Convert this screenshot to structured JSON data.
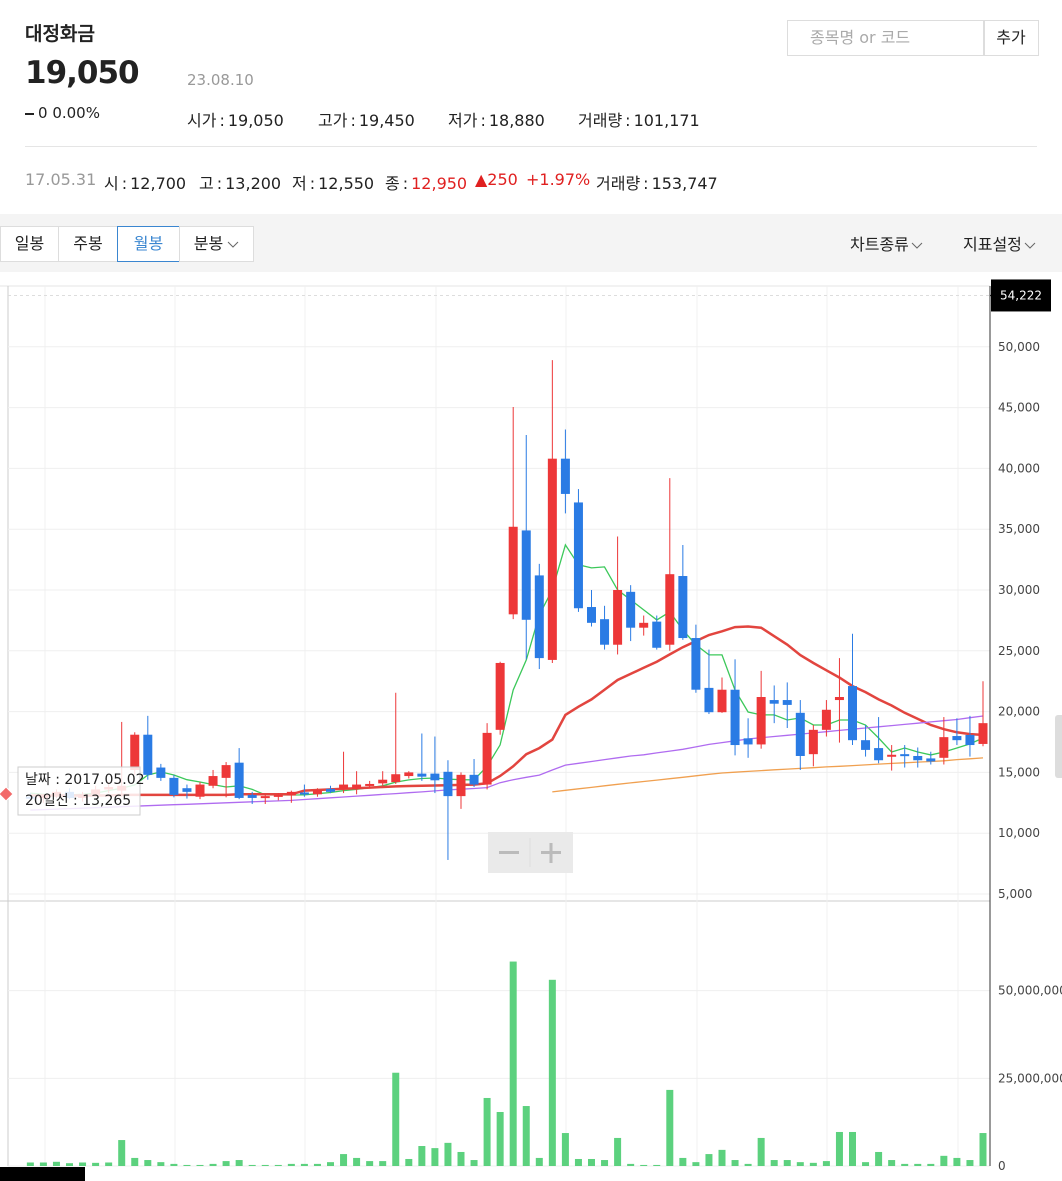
{
  "header": {
    "title": "대정화금",
    "price": "19,050",
    "change": "0",
    "change_rate": "0.00%",
    "date": "23.08.10",
    "separator": ":",
    "stats": [
      {
        "label": "시가",
        "value": "19,050"
      },
      {
        "label": "고가",
        "value": "19,450"
      },
      {
        "label": "저가",
        "value": "18,880"
      },
      {
        "label": "거래량",
        "value": "101,171"
      }
    ]
  },
  "search": {
    "placeholder": "종목명 or 코드",
    "button": "추가"
  },
  "hover_row": {
    "date": "17.05.31",
    "items": [
      {
        "label": "시",
        "value": "12,700"
      },
      {
        "label": "고",
        "value": "13,200"
      },
      {
        "label": "저",
        "value": "12,550"
      },
      {
        "label": "종",
        "value": "12,950"
      }
    ],
    "change": "▲250",
    "change_rate": "+1.97%",
    "volume": {
      "label": "거래량",
      "value": "153,747"
    }
  },
  "tabs": [
    "일봉",
    "주봉",
    "월봉",
    "분봉"
  ],
  "selected_tab": 2,
  "toolbar_right": [
    "차트종류",
    "지표설정"
  ],
  "tooltip": {
    "lines": [
      "날짜 : 2017.05.02",
      "20일선 : 13,265"
    ]
  },
  "chart_data": [
    {
      "type": "candlestick",
      "up_color": "#ed3738",
      "down_color": "#2a7be4",
      "ylim": [
        5000,
        55000
      ],
      "yticks": [
        {
          "value": 5000,
          "label": "5,000"
        },
        {
          "value": 10000,
          "label": "10,000"
        },
        {
          "value": 15000,
          "label": "15,000"
        },
        {
          "value": 20000,
          "label": "20,000"
        },
        {
          "value": 25000,
          "label": "25,000"
        },
        {
          "value": 30000,
          "label": "30,000"
        },
        {
          "value": 35000,
          "label": "35,000"
        },
        {
          "value": 40000,
          "label": "40,000"
        },
        {
          "value": 45000,
          "label": "45,000"
        },
        {
          "value": 50000,
          "label": "50,000"
        }
      ],
      "grid": true,
      "marker": {
        "value": 54222,
        "label": "54,222"
      },
      "open": [
        13000,
        12900,
        13100,
        13400,
        12900,
        13200,
        13600,
        13500,
        15200,
        18100,
        15400,
        14550,
        13700,
        13000,
        13900,
        14550,
        15800,
        13150,
        13000,
        13100,
        13100,
        13350,
        13200,
        13650,
        13650,
        13650,
        14000,
        14100,
        14200,
        14700,
        14900,
        14900,
        15050,
        13050,
        14800,
        14000,
        18500,
        28000,
        34900,
        31200,
        24250,
        40800,
        37200,
        28600,
        27600,
        25500,
        29850,
        26900,
        27400,
        25500,
        31150,
        26050,
        21950,
        19950,
        21800,
        17800,
        17300,
        20950,
        20950,
        19900,
        16500,
        18500,
        20950,
        22100,
        17650,
        17000,
        16300,
        16500,
        16350,
        16150,
        16200,
        17990,
        18080,
        17340
      ],
      "high": [
        13300,
        13200,
        13600,
        13700,
        13400,
        13900,
        14200,
        19150,
        18300,
        19650,
        15700,
        14800,
        14000,
        14200,
        15200,
        15850,
        17000,
        13400,
        13200,
        13300,
        13500,
        14000,
        13700,
        13900,
        16700,
        15100,
        14300,
        15100,
        21550,
        15100,
        18200,
        17950,
        16000,
        15000,
        16100,
        19050,
        24100,
        45050,
        42750,
        32150,
        48900,
        43200,
        38300,
        30000,
        28700,
        34400,
        30400,
        27900,
        27900,
        39200,
        33700,
        27150,
        25100,
        22800,
        24300,
        19450,
        23350,
        22150,
        22400,
        20950,
        18900,
        20950,
        24400,
        26400,
        18900,
        19550,
        17250,
        17250,
        17050,
        16700,
        19550,
        19450,
        19650,
        22500
      ],
      "low": [
        12700,
        12500,
        12900,
        12800,
        12600,
        13000,
        13300,
        13000,
        14800,
        14400,
        14300,
        12950,
        12850,
        12800,
        13700,
        12950,
        12800,
        12400,
        12400,
        12700,
        12500,
        13000,
        13000,
        13300,
        13300,
        13200,
        13700,
        13900,
        14050,
        14500,
        14300,
        13300,
        7800,
        12000,
        13800,
        13600,
        18100,
        27600,
        24300,
        23500,
        24000,
        36300,
        28200,
        27000,
        25100,
        24700,
        25800,
        26250,
        25100,
        25000,
        25900,
        21550,
        19800,
        19900,
        16400,
        16200,
        16950,
        19050,
        18650,
        15200,
        15500,
        17950,
        17450,
        17250,
        16300,
        15750,
        15150,
        15400,
        15400,
        15650,
        15650,
        17250,
        16300,
        17150
      ],
      "close": [
        12900,
        13100,
        13400,
        12900,
        13200,
        13600,
        13800,
        13900,
        18100,
        14800,
        14550,
        13150,
        13400,
        14000,
        14700,
        15600,
        12900,
        12900,
        13050,
        13150,
        13400,
        13250,
        13550,
        13400,
        14000,
        14000,
        14050,
        14400,
        14850,
        15000,
        14650,
        14350,
        13050,
        14800,
        14000,
        18250,
        24000,
        35200,
        27550,
        24400,
        40800,
        37900,
        28500,
        27300,
        25500,
        30000,
        26900,
        27300,
        25250,
        31300,
        26050,
        21800,
        19950,
        21800,
        17250,
        17300,
        21200,
        20650,
        20550,
        16350,
        18500,
        20150,
        21200,
        17650,
        16850,
        16000,
        16450,
        16350,
        16000,
        15900,
        17900,
        17650,
        17250,
        19050
      ],
      "lines": [
        {
          "color": "#3cc85a",
          "values": [
            13300,
            13200,
            13100,
            13150,
            13200,
            13300,
            13500,
            13700,
            13970,
            14790,
            15040,
            14790,
            14400,
            14210,
            14000,
            13800,
            13900,
            13600,
            13150,
            13140,
            13140,
            13150,
            13250,
            13350,
            13500,
            13600,
            13750,
            13900,
            14200,
            14380,
            14500,
            14540,
            14450,
            14400,
            14380,
            15500,
            17260,
            21780,
            24250,
            27950,
            30010,
            33710,
            32070,
            31820,
            31900,
            30010,
            29190,
            28360,
            27540,
            28200,
            26720,
            25490,
            24660,
            24660,
            21780,
            19970,
            19730,
            19730,
            19310,
            19480,
            18900,
            18900,
            19310,
            19310,
            18900,
            17830,
            16680,
            17010,
            16680,
            16440,
            16680,
            17010,
            17340,
            17830
          ]
        },
        {
          "color": "#e2453f",
          "values": [
            13100,
            13100,
            13100,
            13100,
            13100,
            13100,
            13100,
            13150,
            13150,
            13150,
            13150,
            13150,
            13150,
            13150,
            13150,
            13150,
            13200,
            13200,
            13200,
            13200,
            13200,
            13500,
            13550,
            13600,
            13650,
            13700,
            13750,
            13800,
            13850,
            13880,
            13900,
            13920,
            13950,
            13970,
            14000,
            14100,
            14700,
            15500,
            16500,
            17000,
            17700,
            19730,
            20400,
            21000,
            21800,
            22600,
            23100,
            23600,
            24100,
            24700,
            25300,
            25800,
            26300,
            26600,
            26950,
            27000,
            26900,
            26200,
            25500,
            24650,
            24000,
            23400,
            22800,
            22100,
            21600,
            21000,
            20500,
            19900,
            19400,
            18900,
            18550,
            18300,
            18150,
            18080
          ]
        },
        {
          "color": "#b06cf0",
          "values": [
            11900,
            11940,
            11980,
            12020,
            12060,
            12100,
            12140,
            12180,
            12220,
            12260,
            12300,
            12340,
            12380,
            12420,
            12460,
            12500,
            12540,
            12580,
            12620,
            12660,
            12700,
            12770,
            12840,
            12910,
            12980,
            13050,
            13120,
            13190,
            13260,
            13330,
            13400,
            13480,
            13560,
            13620,
            13680,
            13750,
            14150,
            14400,
            14600,
            14780,
            15200,
            15600,
            15750,
            15900,
            16050,
            16200,
            16350,
            16450,
            16600,
            16750,
            16900,
            17100,
            17300,
            17450,
            17600,
            17750,
            17850,
            17950,
            18050,
            18150,
            18250,
            18350,
            18450,
            18550,
            18650,
            18750,
            18850,
            18950,
            19050,
            19150,
            19250,
            19350,
            19500,
            19640
          ]
        },
        {
          "color": "#f0a050",
          "values": [
            null,
            null,
            null,
            null,
            null,
            null,
            null,
            null,
            null,
            null,
            null,
            null,
            null,
            null,
            null,
            null,
            null,
            null,
            null,
            null,
            null,
            null,
            null,
            null,
            null,
            null,
            null,
            null,
            null,
            null,
            null,
            null,
            null,
            null,
            null,
            null,
            null,
            null,
            null,
            null,
            13400,
            13530,
            13650,
            13770,
            13900,
            14020,
            14140,
            14250,
            14370,
            14480,
            14600,
            14720,
            14840,
            14950,
            15020,
            15080,
            15150,
            15210,
            15270,
            15330,
            15390,
            15450,
            15500,
            15560,
            15620,
            15680,
            15740,
            15790,
            15850,
            15900,
            15950,
            16050,
            16120,
            16190
          ]
        }
      ]
    },
    {
      "type": "bar",
      "color": "#5cd17e",
      "ylim": [
        0,
        75000000
      ],
      "yticks": [
        0,
        {
          "value": 25000000,
          "label": "25,000,000"
        },
        {
          "value": 50000000,
          "label": "50,000,000"
        }
      ],
      "grid": true,
      "values": [
        1000000,
        1000000,
        1200000,
        800000,
        1000000,
        900000,
        1000000,
        7400000,
        2300000,
        1700000,
        1100000,
        600000,
        300000,
        300000,
        600000,
        1400000,
        1700000,
        300000,
        300000,
        300000,
        600000,
        600000,
        600000,
        1100000,
        3400000,
        2300000,
        1400000,
        1400000,
        26600000,
        2000000,
        5700000,
        5100000,
        6600000,
        4000000,
        1700000,
        19400000,
        15400000,
        58300000,
        17100000,
        2300000,
        53100000,
        9400000,
        2000000,
        2000000,
        1700000,
        8000000,
        600000,
        300000,
        300000,
        21700000,
        2300000,
        1100000,
        3400000,
        4600000,
        1700000,
        600000,
        8000000,
        1700000,
        1700000,
        1100000,
        900000,
        1400000,
        9700000,
        9700000,
        1100000,
        4000000,
        1700000,
        600000,
        600000,
        600000,
        2900000,
        2300000,
        1700000,
        9400000
      ]
    }
  ]
}
